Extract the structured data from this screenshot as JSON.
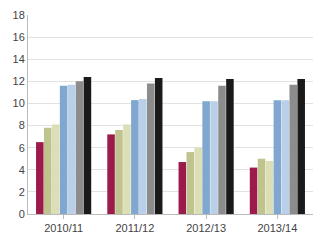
{
  "chart_data": {
    "type": "bar",
    "categories": [
      "2010/11",
      "2011/12",
      "2012/13",
      "2013/14"
    ],
    "series": [
      {
        "color": "#9b1b4a",
        "values": [
          6.5,
          7.2,
          4.7,
          4.2
        ]
      },
      {
        "color": "#bfc48e",
        "values": [
          7.8,
          7.6,
          5.6,
          5.0
        ]
      },
      {
        "color": "#dcdfb6",
        "values": [
          8.1,
          8.1,
          6.0,
          4.8
        ]
      },
      {
        "color": "#7fa7cf",
        "values": [
          11.6,
          10.3,
          10.2,
          10.3
        ]
      },
      {
        "color": "#b9d0e8",
        "values": [
          11.7,
          10.4,
          10.2,
          10.3
        ]
      },
      {
        "color": "#8c8c8c",
        "values": [
          12.0,
          11.8,
          11.6,
          11.7
        ]
      },
      {
        "color": "#1a1a1a",
        "values": [
          12.4,
          12.3,
          12.2,
          12.2
        ]
      }
    ],
    "ylim": [
      0,
      18
    ],
    "yticks": [
      0,
      2,
      4,
      6,
      8,
      10,
      12,
      14,
      16,
      18
    ],
    "grid": true
  }
}
